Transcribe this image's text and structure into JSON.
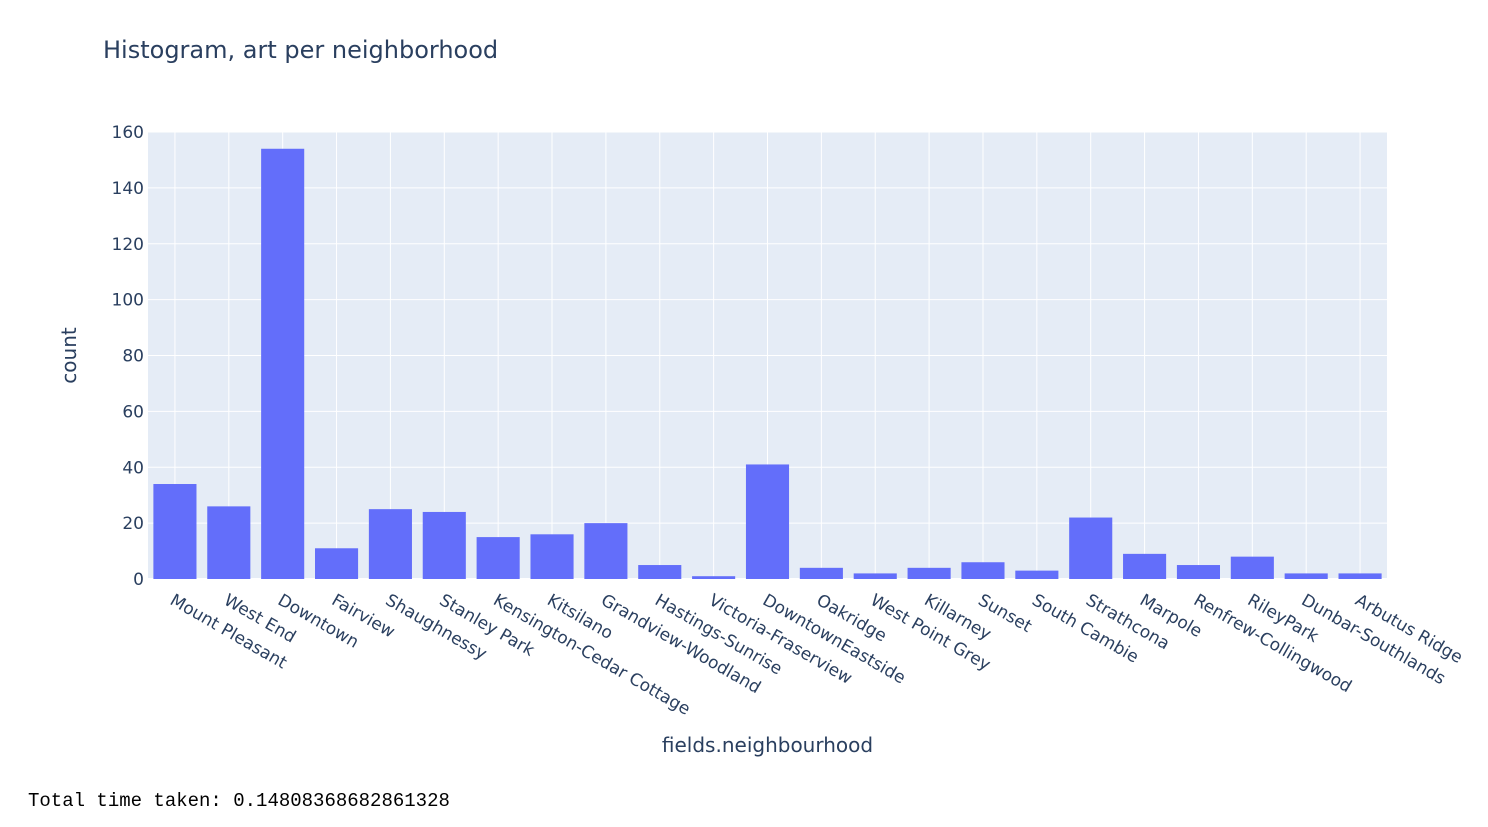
{
  "chart_data": {
    "type": "bar",
    "title": "Histogram, art per neighborhood",
    "xlabel": "fields.neighbourhood",
    "ylabel": "count",
    "ylim": [
      0,
      160
    ],
    "yticks": [
      0,
      20,
      40,
      60,
      80,
      100,
      120,
      140,
      160
    ],
    "grid": true,
    "bar_color": "#636efa",
    "plot_bg": "#e5ecf6",
    "grid_color": "#ffffff",
    "text_color": "#2a3f5f",
    "categories": [
      "Mount Pleasant",
      "West End",
      "Downtown",
      "Fairview",
      "Shaughnessy",
      "Stanley Park",
      "Kensington-Cedar Cottage",
      "Kitsilano",
      "Grandview-Woodland",
      "Hastings-Sunrise",
      "Victoria-Fraserview",
      "DowntownEastside",
      "Oakridge",
      "West Point Grey",
      "Killarney",
      "Sunset",
      "South Cambie",
      "Strathcona",
      "Marpole",
      "Renfrew-Collingwood",
      "RileyPark",
      "Dunbar-Southlands",
      "Arbutus Ridge"
    ],
    "values": [
      34,
      26,
      154,
      11,
      25,
      24,
      15,
      16,
      20,
      5,
      1,
      41,
      4,
      2,
      4,
      6,
      3,
      22,
      9,
      5,
      8,
      2,
      2
    ]
  },
  "footer": {
    "text": "Total time taken: 0.14808368682861328"
  }
}
